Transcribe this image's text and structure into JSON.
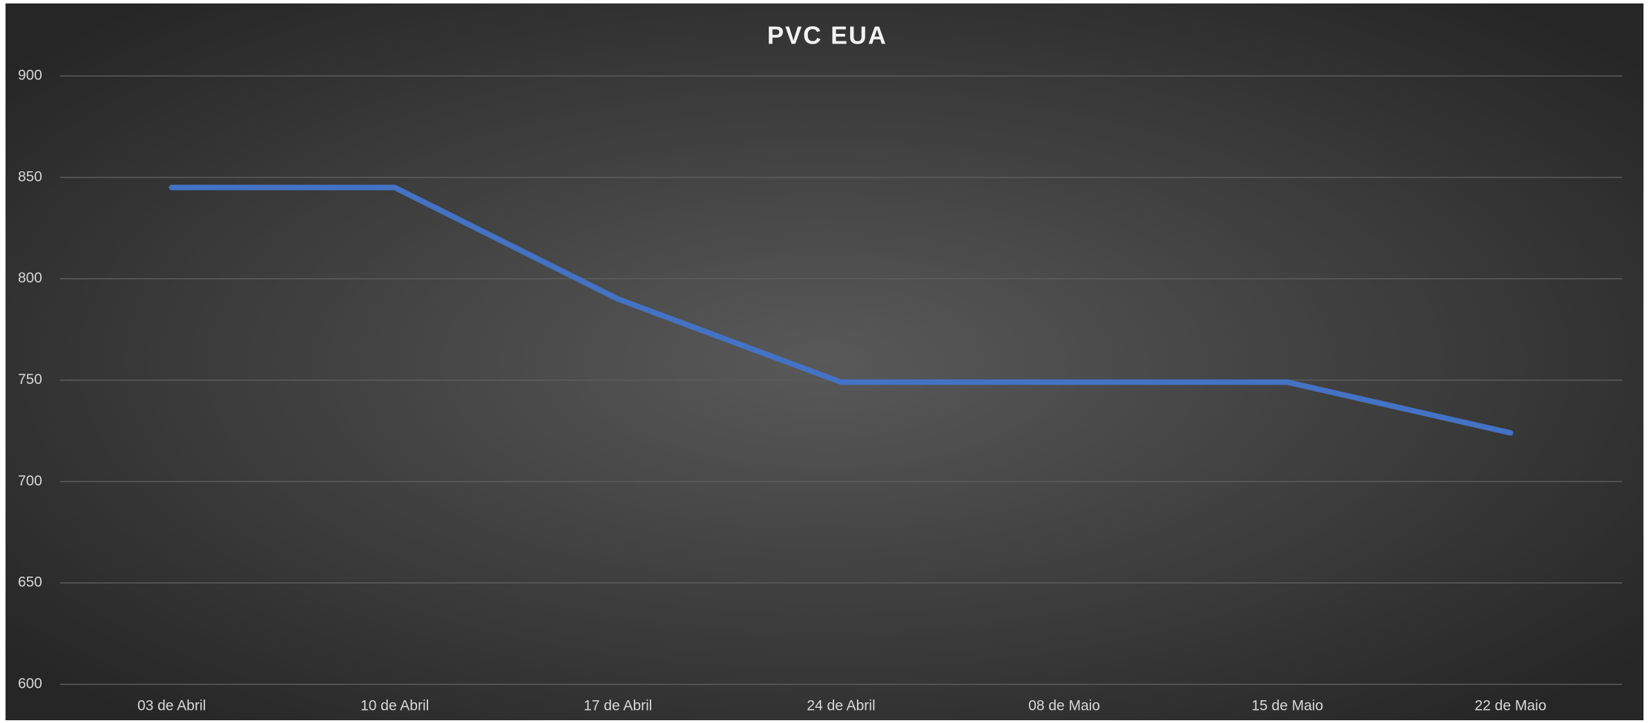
{
  "chart_data": {
    "type": "line",
    "title": "PVC EUA",
    "categories": [
      "03 de Abril",
      "10 de Abril",
      "17 de Abril",
      "24 de Abril",
      "08 de Maio",
      "15 de Maio",
      "22 de Maio"
    ],
    "series": [
      {
        "name": "PVC EUA",
        "color": "#4472c4",
        "values": [
          845,
          845,
          790,
          749,
          749,
          749,
          724
        ]
      }
    ],
    "ylim": [
      600,
      900
    ],
    "yticks": [
      600,
      650,
      700,
      750,
      800,
      850,
      900
    ],
    "grid": true,
    "legend": false
  }
}
